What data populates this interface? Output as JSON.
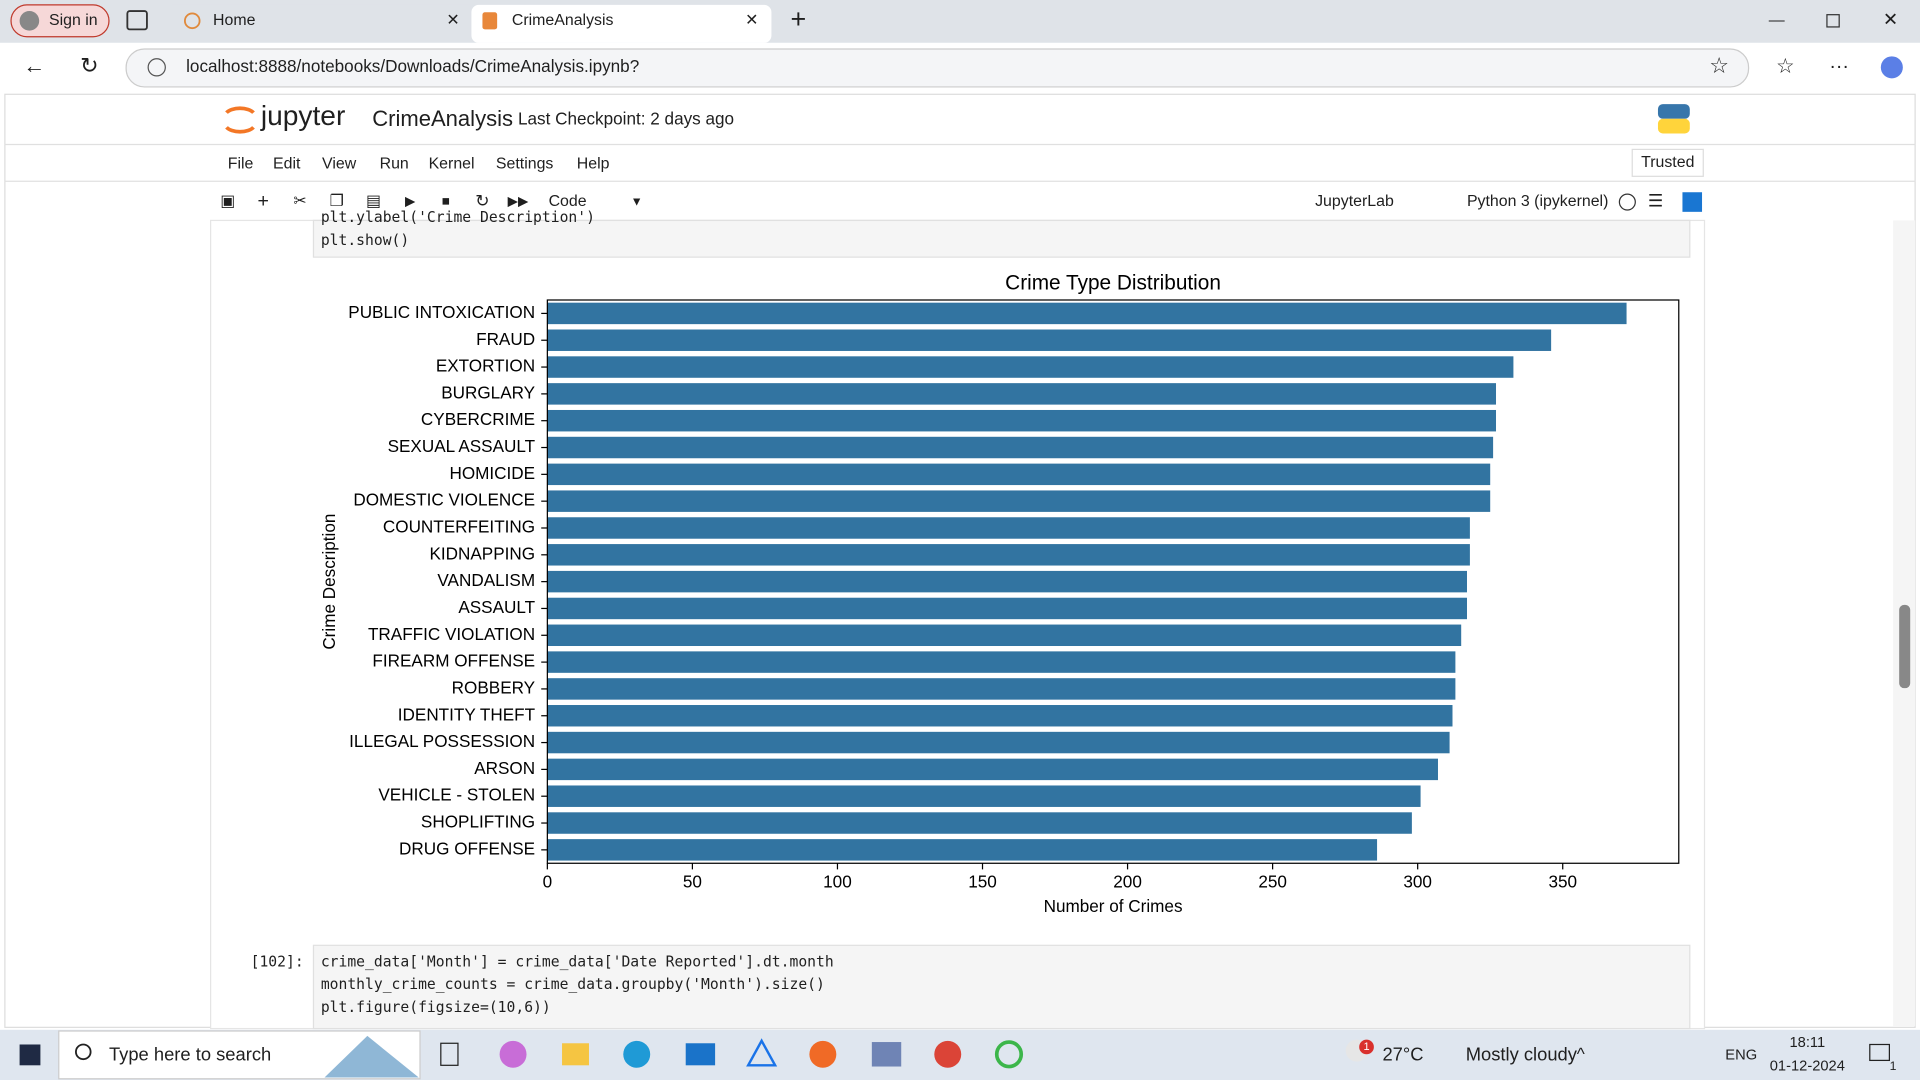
{
  "browser": {
    "sign_in": "Sign in",
    "tabs": [
      "Home",
      "CrimeAnalysis"
    ],
    "url": "localhost:8888/notebooks/Downloads/CrimeAnalysis.ipynb?"
  },
  "notebook": {
    "logo": "jupyter",
    "name": "CrimeAnalysis",
    "checkpoint": "Last Checkpoint: 2 days ago",
    "trusted": "Trusted",
    "menu": [
      "File",
      "Edit",
      "View",
      "Run",
      "Kernel",
      "Settings",
      "Help"
    ],
    "cell_type": "Code",
    "jupyterlab": "JupyterLab",
    "kernel": "Python 3 (ipykernel)"
  },
  "cells": [
    {
      "code": [
        "plt.ylabel('Crime Description')",
        "plt.show()"
      ]
    },
    {
      "prompt": "[102]:",
      "code": [
        "crime_data['Month'] = crime_data['Date Reported'].dt.month",
        "monthly_crime_counts = crime_data.groupby('Month').size()",
        "plt.figure(figsize=(10,6))"
      ]
    }
  ],
  "chart_data": {
    "type": "barh",
    "title": "Crime Type Distribution",
    "x_label": "Number of Crimes",
    "y_label": "Crime Description",
    "categories": [
      "PUBLIC INTOXICATION",
      "FRAUD",
      "EXTORTION",
      "BURGLARY",
      "CYBERCRIME",
      "SEXUAL ASSAULT",
      "HOMICIDE",
      "DOMESTIC VIOLENCE",
      "COUNTERFEITING",
      "KIDNAPPING",
      "VANDALISM",
      "ASSAULT",
      "TRAFFIC VIOLATION",
      "FIREARM OFFENSE",
      "ROBBERY",
      "IDENTITY THEFT",
      "ILLEGAL POSSESSION",
      "ARSON",
      "VEHICLE - STOLEN",
      "SHOPLIFTING",
      "DRUG OFFENSE"
    ],
    "values": [
      372,
      346,
      333,
      327,
      327,
      326,
      325,
      325,
      318,
      318,
      317,
      317,
      315,
      313,
      313,
      312,
      311,
      307,
      301,
      298,
      286
    ],
    "color": "#3274a1",
    "xlim": [
      0,
      390
    ],
    "xticks": [
      0,
      50,
      100,
      150,
      200,
      250,
      300,
      350
    ],
    "grid": false
  },
  "taskbar": {
    "search": "Type here to search",
    "weather_alert": "1",
    "temperature": "27°C",
    "weather": "Mostly cloudy",
    "language": "ENG",
    "time": "18:11",
    "date": "01-12-2024",
    "notifications": "1"
  }
}
